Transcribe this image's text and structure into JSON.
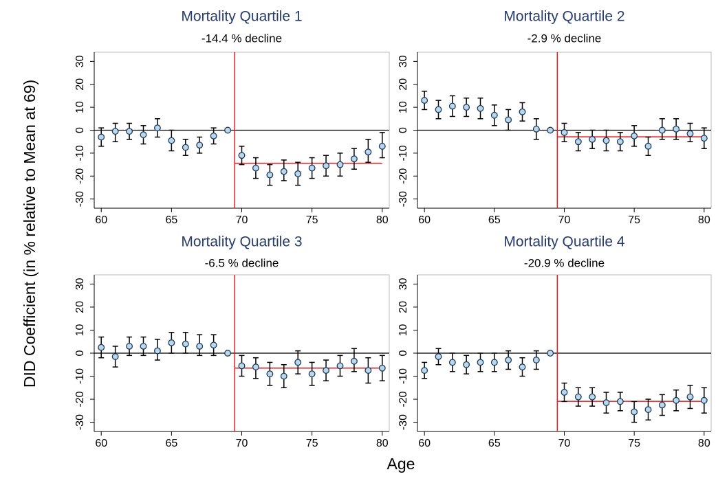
{
  "y_label": "DID Coefficient (in % relative to Mean at 69)",
  "x_label": "Age",
  "chart_data": [
    {
      "type": "scatter",
      "title": "Mortality Quartile 1",
      "subtitle": "-14.4 % decline",
      "post_mean": -14.4,
      "vline": 69.5,
      "hline": 0,
      "x": [
        60,
        61,
        62,
        63,
        64,
        65,
        66,
        67,
        68,
        69,
        70,
        71,
        72,
        73,
        74,
        75,
        76,
        77,
        78,
        79,
        80
      ],
      "values": [
        -3,
        -0.5,
        -0.5,
        -2,
        1,
        -4.5,
        -7.5,
        -6.5,
        -2.5,
        0,
        -11,
        -16.5,
        -19.5,
        -18,
        -19,
        -16.5,
        -15.5,
        -15,
        -12.5,
        -9.5,
        -7
      ],
      "ci_low": [
        -7,
        -5,
        -4,
        -6,
        -3,
        -9,
        -11,
        -10,
        -6,
        null,
        -15,
        -21,
        -24,
        -22,
        -24,
        -21,
        -20,
        -20,
        -17,
        -14,
        -12
      ],
      "ci_high": [
        1,
        3,
        3,
        2,
        5,
        0,
        -4,
        -3,
        1,
        null,
        -7,
        -12,
        -15,
        -13,
        -14,
        -12,
        -11,
        -10,
        -8,
        -4,
        -1
      ],
      "xlim": [
        59.5,
        80.5
      ],
      "ylim": [
        -34,
        34
      ],
      "xticks": [
        60,
        65,
        70,
        75,
        80
      ],
      "yticks": [
        -30,
        -20,
        -10,
        0,
        10,
        20,
        30
      ]
    },
    {
      "type": "scatter",
      "title": "Mortality Quartile 2",
      "subtitle": "-2.9 % decline",
      "post_mean": -2.9,
      "vline": 69.5,
      "hline": 0,
      "x": [
        60,
        61,
        62,
        63,
        64,
        65,
        66,
        67,
        68,
        69,
        70,
        71,
        72,
        73,
        74,
        75,
        76,
        77,
        78,
        79,
        80
      ],
      "values": [
        13,
        9,
        10.5,
        10,
        9.5,
        6.5,
        4.5,
        8,
        0.5,
        0,
        -1,
        -5,
        -4,
        -4.5,
        -5,
        -2.5,
        -7,
        0,
        0.5,
        -1.5,
        -3.5
      ],
      "ci_low": [
        9,
        5,
        6,
        6,
        5,
        2,
        0,
        4,
        -4,
        null,
        -5,
        -9,
        -8,
        -9,
        -9,
        -7,
        -11,
        -4,
        -4,
        -5,
        -8
      ],
      "ci_high": [
        17,
        13,
        15,
        14,
        14,
        11,
        9,
        12,
        5,
        null,
        3,
        -1,
        0,
        0,
        -1,
        2,
        -3,
        5,
        5,
        3,
        1
      ],
      "xlim": [
        59.5,
        80.5
      ],
      "ylim": [
        -34,
        34
      ],
      "xticks": [
        60,
        65,
        70,
        75,
        80
      ],
      "yticks": [
        -30,
        -20,
        -10,
        0,
        10,
        20,
        30
      ]
    },
    {
      "type": "scatter",
      "title": "Mortality Quartile 3",
      "subtitle": "-6.5 % decline",
      "post_mean": -6.5,
      "vline": 69.5,
      "hline": 0,
      "x": [
        60,
        61,
        62,
        63,
        64,
        65,
        66,
        67,
        68,
        69,
        70,
        71,
        72,
        73,
        74,
        75,
        76,
        77,
        78,
        79,
        80
      ],
      "values": [
        2.5,
        -1.5,
        3,
        3,
        1,
        4.5,
        4,
        3,
        3.5,
        0,
        -5.5,
        -6,
        -9,
        -10,
        -4,
        -9,
        -7.5,
        -5.5,
        -3.5,
        -7.5,
        -6.5
      ],
      "ci_low": [
        -2,
        -6,
        -1,
        -1,
        -3,
        0,
        0,
        -1,
        -1,
        null,
        -10,
        -11,
        -14,
        -15,
        -9,
        -14,
        -12,
        -10,
        -8,
        -13,
        -12
      ],
      "ci_high": [
        7,
        3,
        7,
        7,
        6,
        9,
        9,
        8,
        8,
        null,
        -1,
        -2,
        -4,
        -5,
        1,
        -4,
        -3,
        -1,
        2,
        -2,
        -1
      ],
      "xlim": [
        59.5,
        80.5
      ],
      "ylim": [
        -34,
        34
      ],
      "xticks": [
        60,
        65,
        70,
        75,
        80
      ],
      "yticks": [
        -30,
        -20,
        -10,
        0,
        10,
        20,
        30
      ]
    },
    {
      "type": "scatter",
      "title": "Mortality Quartile 4",
      "subtitle": "-20.9 % decline",
      "post_mean": -20.9,
      "vline": 69.5,
      "hline": 0,
      "x": [
        60,
        61,
        62,
        63,
        64,
        65,
        66,
        67,
        68,
        69,
        70,
        71,
        72,
        73,
        74,
        75,
        76,
        77,
        78,
        79,
        80
      ],
      "values": [
        -7.5,
        -1.5,
        -4,
        -5,
        -4,
        -4,
        -3,
        -6,
        -3,
        0,
        -17,
        -19,
        -19,
        -21.5,
        -21,
        -25.5,
        -24.5,
        -22.5,
        -20.5,
        -19,
        -20.5
      ],
      "ci_low": [
        -11,
        -5,
        -8,
        -9,
        -8,
        -8,
        -7,
        -10,
        -7,
        null,
        -21,
        -23,
        -23,
        -26,
        -25,
        -30,
        -29,
        -27,
        -25,
        -24,
        -26
      ],
      "ci_high": [
        -4,
        2,
        0,
        -1,
        0,
        0,
        1,
        -2,
        1,
        null,
        -13,
        -15,
        -15,
        -17,
        -17,
        -21,
        -20,
        -18,
        -16,
        -14,
        -15
      ],
      "xlim": [
        59.5,
        80.5
      ],
      "ylim": [
        -34,
        34
      ],
      "xticks": [
        60,
        65,
        70,
        75,
        80
      ],
      "yticks": [
        -30,
        -20,
        -10,
        0,
        10,
        20,
        30
      ]
    }
  ]
}
